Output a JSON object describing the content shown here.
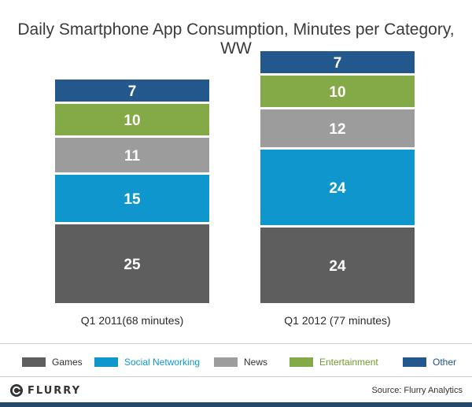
{
  "title": "Daily Smartphone App Consumption, Minutes per Category, WW",
  "colors": {
    "Games": "#5e5e5e",
    "Social Networking": "#0f97cd",
    "News": "#9c9c9c",
    "Entertainment": "#84a947",
    "Other": "#23588c"
  },
  "chart_data": {
    "type": "bar",
    "stacked": true,
    "title": "Daily Smartphone App Consumption, Minutes per Category, WW",
    "categories": [
      "Q1 2011(68 minutes)",
      "Q1 2012 (77 minutes)"
    ],
    "series": [
      {
        "name": "Games",
        "values": [
          25,
          24
        ]
      },
      {
        "name": "Social Networking",
        "values": [
          15,
          24
        ]
      },
      {
        "name": "News",
        "values": [
          11,
          12
        ]
      },
      {
        "name": "Entertainment",
        "values": [
          10,
          10
        ]
      },
      {
        "name": "Other",
        "values": [
          7,
          7
        ]
      }
    ],
    "legend": "bottom",
    "grid": false
  },
  "legend": {
    "items": [
      {
        "label": "Games",
        "text_color": "#333333"
      },
      {
        "label": "Social Networking",
        "text_color": "#0f97cd"
      },
      {
        "label": "News",
        "text_color": "#333333"
      },
      {
        "label": "Entertainment",
        "text_color": "#6f9a2f"
      },
      {
        "label": "Other",
        "text_color": "#1f4f80"
      }
    ]
  },
  "footer": {
    "logo_text": "FLURRY",
    "source": "Source: Flurry Analytics"
  }
}
